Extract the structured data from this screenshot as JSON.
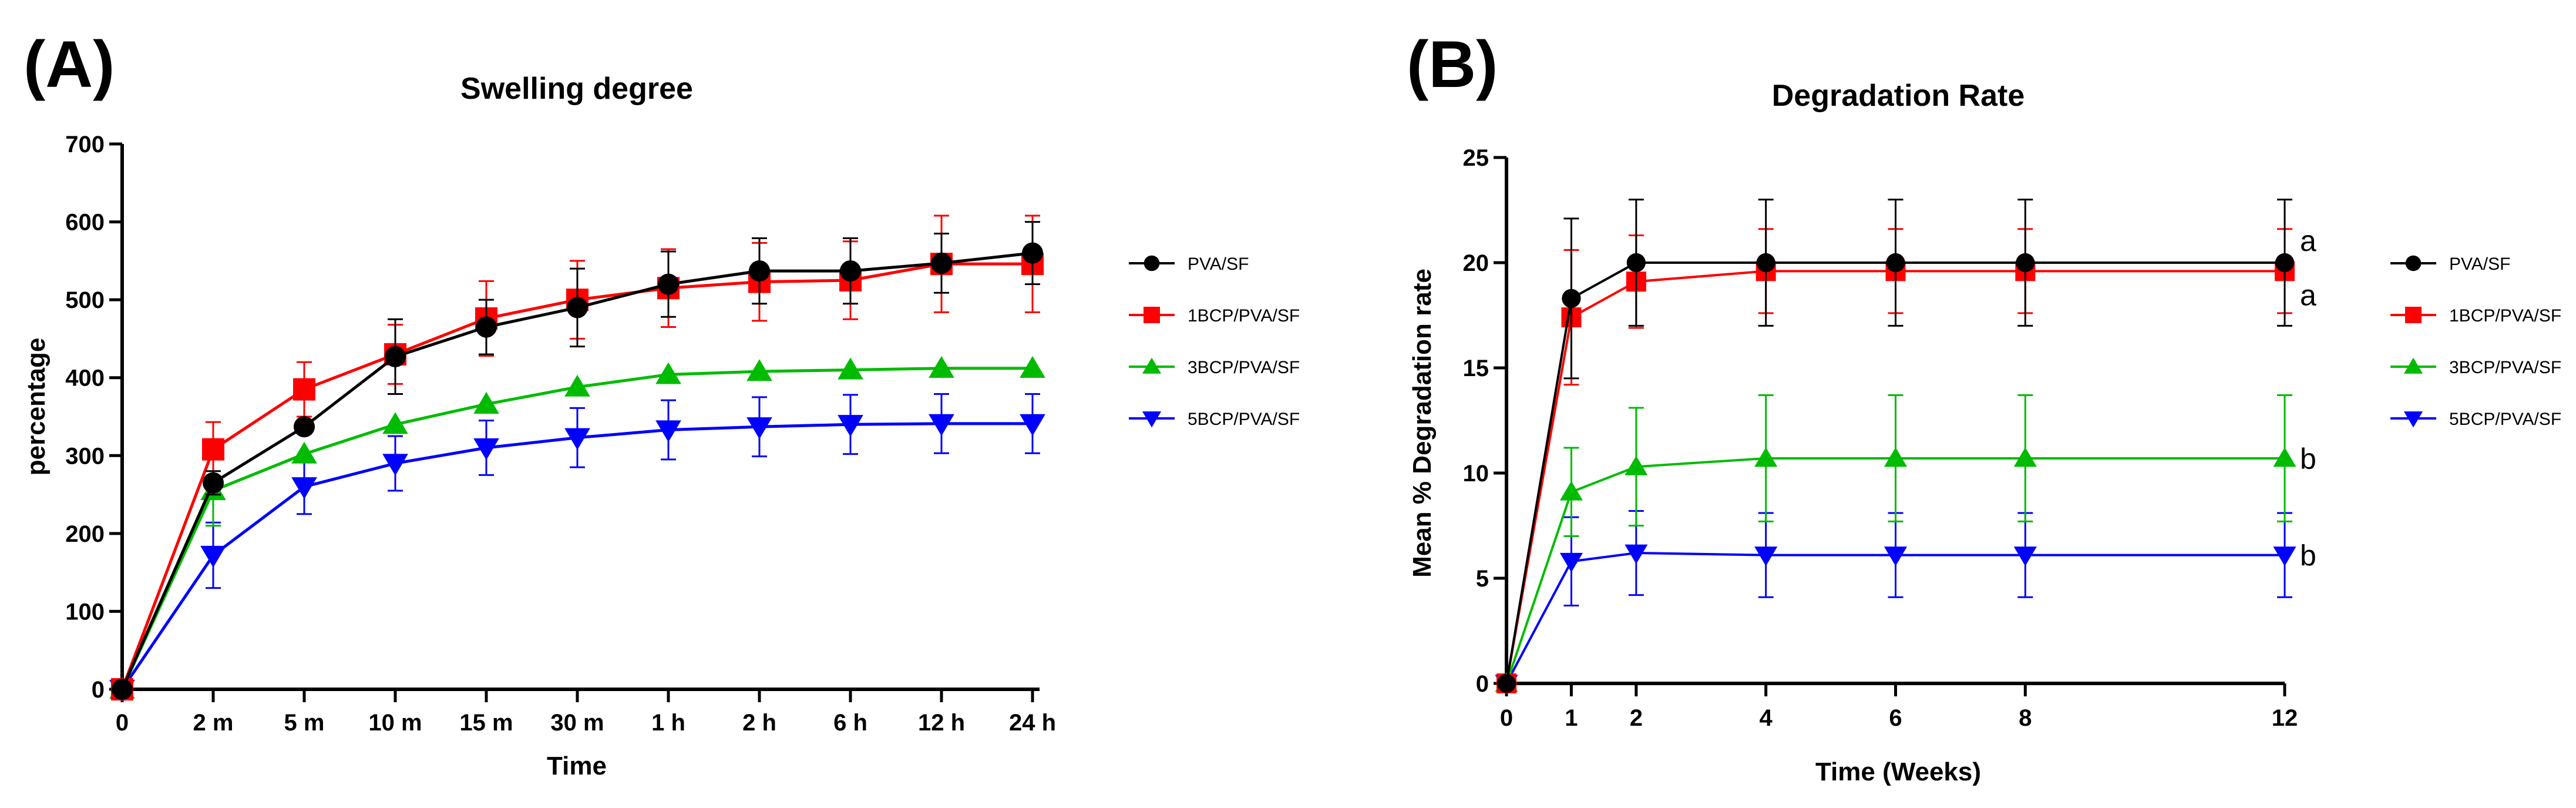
{
  "chart_data": [
    {
      "type": "line",
      "panel_label": "(A)",
      "title": "Swelling degree",
      "xlabel": "Time",
      "ylabel": "percentage",
      "categories": [
        "0",
        "2 m",
        "5 m",
        "10 m",
        "15 m",
        "30 m",
        "1 h",
        "2 h",
        "6 h",
        "12 h",
        "24 h"
      ],
      "ylim": [
        0,
        700
      ],
      "yticks": [
        0,
        100,
        200,
        300,
        400,
        500,
        600,
        700
      ],
      "series": [
        {
          "name": "PVA/SF",
          "color": "#000000",
          "marker": "circle",
          "values": [
            0,
            265,
            337,
            427,
            465,
            490,
            520,
            537,
            537,
            547,
            560
          ],
          "errors": [
            0,
            15,
            0,
            48,
            35,
            50,
            42,
            42,
            42,
            38,
            40
          ]
        },
        {
          "name": "1BCP/PVA/SF",
          "color": "#ff0000",
          "marker": "square",
          "values": [
            0,
            308,
            385,
            430,
            476,
            500,
            515,
            523,
            525,
            546,
            546
          ],
          "errors": [
            0,
            35,
            35,
            38,
            48,
            50,
            50,
            50,
            50,
            62,
            62
          ]
        },
        {
          "name": "3BCP/PVA/SF",
          "color": "#00bb00",
          "marker": "triangle-up",
          "values": [
            0,
            255,
            302,
            340,
            366,
            388,
            404,
            408,
            410,
            412,
            412
          ],
          "errors": [
            0,
            45,
            0,
            0,
            0,
            0,
            0,
            0,
            0,
            0,
            0
          ]
        },
        {
          "name": "5BCP/PVA/SF",
          "color": "#0000ff",
          "marker": "triangle-down",
          "values": [
            0,
            172,
            260,
            290,
            310,
            323,
            333,
            337,
            340,
            341,
            341
          ],
          "errors": [
            0,
            42,
            35,
            35,
            35,
            38,
            38,
            38,
            38,
            38,
            38
          ]
        }
      ],
      "legend_position": "right"
    },
    {
      "type": "line",
      "panel_label": "(B)",
      "title": "Degradation Rate",
      "xlabel": "Time (Weeks)",
      "ylabel": "Mean % Degradation rate",
      "x": [
        0,
        1,
        2,
        4,
        6,
        8,
        12
      ],
      "xlim": [
        0,
        12
      ],
      "ylim": [
        0,
        25
      ],
      "yticks": [
        0,
        5,
        10,
        15,
        20,
        25
      ],
      "xticks": [
        0,
        1,
        2,
        4,
        6,
        8,
        12
      ],
      "series": [
        {
          "name": "PVA/SF",
          "color": "#000000",
          "marker": "circle",
          "values": [
            0,
            18.3,
            20,
            20,
            20,
            20,
            20
          ],
          "errors": [
            0,
            3.8,
            3.0,
            3.0,
            3.0,
            3.0,
            3.0
          ],
          "significance": "a"
        },
        {
          "name": "1BCP/PVA/SF",
          "color": "#ff0000",
          "marker": "square",
          "values": [
            0,
            17.4,
            19.1,
            19.6,
            19.6,
            19.6,
            19.6
          ],
          "errors": [
            0,
            3.2,
            2.2,
            2.0,
            2.0,
            2.0,
            2.0
          ],
          "significance": "a"
        },
        {
          "name": "3BCP/PVA/SF",
          "color": "#00bb00",
          "marker": "triangle-up",
          "values": [
            0,
            9.1,
            10.3,
            10.7,
            10.7,
            10.7,
            10.7
          ],
          "errors": [
            0,
            2.1,
            2.8,
            3.0,
            3.0,
            3.0,
            3.0
          ],
          "significance": "b"
        },
        {
          "name": "5BCP/PVA/SF",
          "color": "#0000ff",
          "marker": "triangle-down",
          "values": [
            0,
            5.8,
            6.2,
            6.1,
            6.1,
            6.1,
            6.1
          ],
          "errors": [
            0,
            2.1,
            2.0,
            2.0,
            2.0,
            2.0,
            2.0
          ],
          "significance": "b"
        }
      ],
      "legend_position": "right"
    }
  ]
}
